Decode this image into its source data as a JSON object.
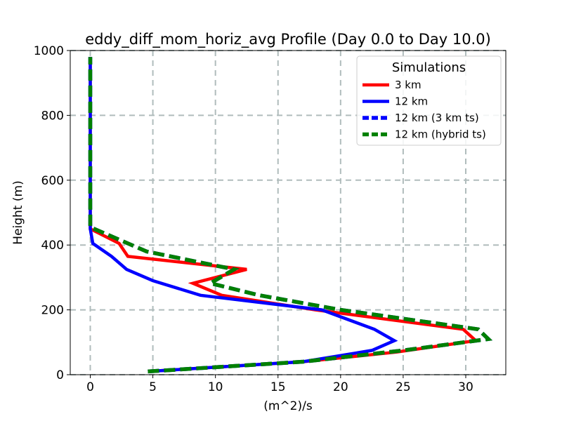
{
  "chart_data": {
    "type": "line",
    "title": "eddy_diff_mom_horiz_avg Profile (Day 0.0 to Day 10.0)",
    "xlabel": "(m^2)/s",
    "ylabel": "Height (m)",
    "xlim": [
      -1.6,
      33.2
    ],
    "ylim": [
      0,
      1000
    ],
    "xticks": [
      0,
      5,
      10,
      15,
      20,
      25,
      30
    ],
    "yticks": [
      0,
      200,
      400,
      600,
      800,
      1000
    ],
    "grid": true,
    "legend": {
      "title": "Simulations",
      "position": "top-right"
    },
    "series": [
      {
        "name": "3 km",
        "color": "#ff0000",
        "style": "solid",
        "points": [
          [
            4.6,
            10
          ],
          [
            17,
            40
          ],
          [
            24.5,
            70
          ],
          [
            30.8,
            105
          ],
          [
            29.8,
            140
          ],
          [
            18,
            200
          ],
          [
            10.5,
            245
          ],
          [
            8.2,
            282
          ],
          [
            12.5,
            325
          ],
          [
            3,
            365
          ],
          [
            2.3,
            405
          ],
          [
            0,
            450
          ],
          [
            0,
            500
          ],
          [
            0,
            600
          ],
          [
            0,
            700
          ],
          [
            0,
            800
          ],
          [
            0,
            900
          ],
          [
            0,
            980
          ]
        ]
      },
      {
        "name": "12 km",
        "color": "#0000ff",
        "style": "solid",
        "points": [
          [
            4.6,
            10
          ],
          [
            17,
            40
          ],
          [
            22.5,
            75
          ],
          [
            24.3,
            105
          ],
          [
            22.7,
            140
          ],
          [
            18.5,
            200
          ],
          [
            8.8,
            245
          ],
          [
            5,
            290
          ],
          [
            2.9,
            325
          ],
          [
            1.7,
            365
          ],
          [
            0.2,
            405
          ],
          [
            0,
            450
          ],
          [
            0,
            500
          ],
          [
            0,
            600
          ],
          [
            0,
            700
          ],
          [
            0,
            800
          ],
          [
            0,
            900
          ],
          [
            0,
            980
          ]
        ]
      },
      {
        "name": "12 km (3 km ts)",
        "color": "#0000ff",
        "style": "dashed",
        "points": [
          [
            4.6,
            10
          ],
          [
            17,
            40
          ],
          [
            25,
            75
          ],
          [
            31.8,
            110
          ],
          [
            31,
            140
          ],
          [
            20,
            200
          ],
          [
            13.5,
            245
          ],
          [
            9.6,
            282
          ],
          [
            11.5,
            325
          ],
          [
            4.5,
            380
          ],
          [
            0,
            455
          ],
          [
            0,
            500
          ],
          [
            0,
            600
          ],
          [
            0,
            700
          ],
          [
            0,
            800
          ],
          [
            0,
            900
          ],
          [
            0,
            980
          ]
        ]
      },
      {
        "name": "12 km (hybrid ts)",
        "color": "#008000",
        "style": "dashed",
        "points": [
          [
            4.6,
            10
          ],
          [
            17,
            40
          ],
          [
            25,
            75
          ],
          [
            31.8,
            110
          ],
          [
            31,
            140
          ],
          [
            20,
            200
          ],
          [
            13.5,
            245
          ],
          [
            9.6,
            282
          ],
          [
            11.5,
            325
          ],
          [
            4.5,
            380
          ],
          [
            0,
            455
          ],
          [
            0,
            500
          ],
          [
            0,
            600
          ],
          [
            0,
            700
          ],
          [
            0,
            800
          ],
          [
            0,
            900
          ],
          [
            0,
            980
          ]
        ]
      }
    ]
  }
}
